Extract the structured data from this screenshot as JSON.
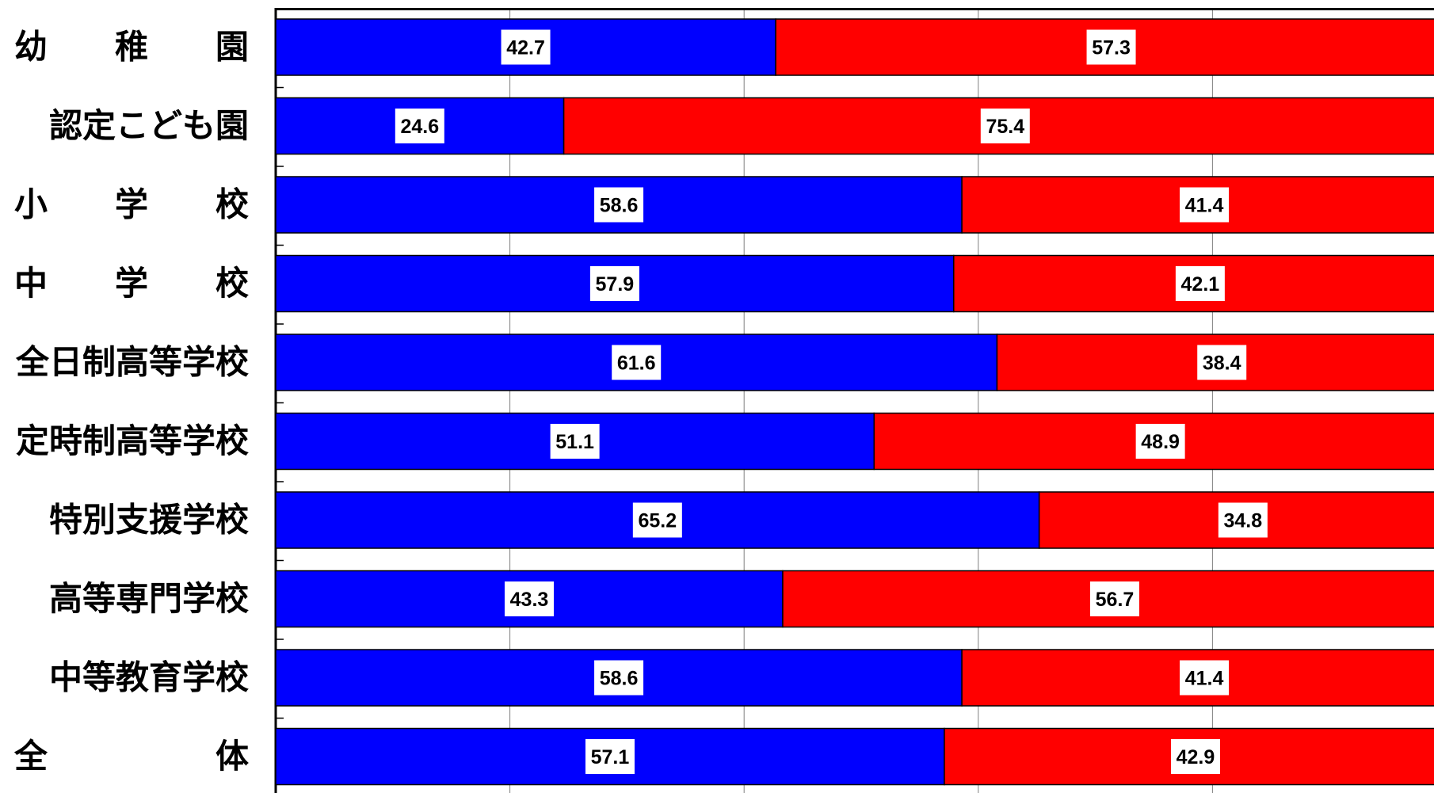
{
  "chart_data": {
    "type": "bar",
    "orientation": "horizontal",
    "stacked": true,
    "percent": true,
    "xlim": [
      0,
      100
    ],
    "grid": true,
    "categories": [
      "幼稚園",
      "認定こども園",
      "小学校",
      "中学校",
      "全日制高等学校",
      "定時制高等学校",
      "特別支援学校",
      "高等専門学校",
      "中等教育学校",
      "全体"
    ],
    "series": [
      {
        "color": "#0000ff",
        "values": [
          42.7,
          24.6,
          58.6,
          57.9,
          61.6,
          51.1,
          65.2,
          43.3,
          58.6,
          57.1
        ]
      },
      {
        "color": "#ff0000",
        "values": [
          57.3,
          75.4,
          41.4,
          42.1,
          38.4,
          48.9,
          34.8,
          56.7,
          41.4,
          42.9
        ]
      }
    ],
    "data_labels": {
      "series_0": [
        "42.7",
        "24.6",
        "58.6",
        "57.9",
        "61.6",
        "51.1",
        "65.2",
        "43.3",
        "58.6",
        "57.1"
      ],
      "series_1": [
        "57.3",
        "75.4",
        "41.4",
        "42.1",
        "38.4",
        "48.9",
        "34.8",
        "56.7",
        "41.4",
        "42.9"
      ]
    },
    "category_label_style": [
      "spread",
      "right",
      "spread",
      "spread",
      "right",
      "right",
      "right",
      "right",
      "right",
      "spread"
    ]
  }
}
